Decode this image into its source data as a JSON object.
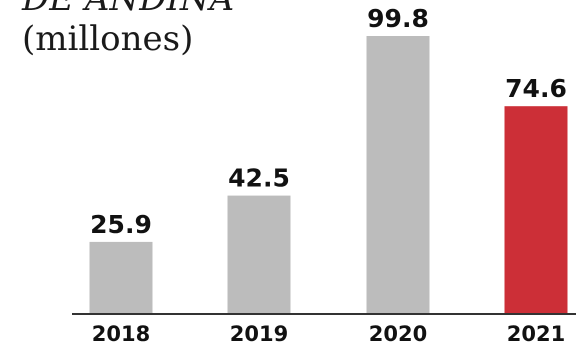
{
  "chart_data": {
    "type": "bar",
    "title": "DE ANDINA",
    "subtitle": "(millones)",
    "categories": [
      "2018",
      "2019",
      "2020",
      "2021"
    ],
    "values": [
      25.9,
      42.5,
      99.8,
      74.6
    ],
    "value_labels": [
      "25.9",
      "42.5",
      "99.8",
      "74.6"
    ],
    "ylim": [
      0,
      99.8
    ],
    "grid": false,
    "legend": "none",
    "colors": {
      "bar": "#bcbcbc",
      "highlight": "#cc2f37",
      "axis": "#333333"
    },
    "highlight_index": 3
  }
}
